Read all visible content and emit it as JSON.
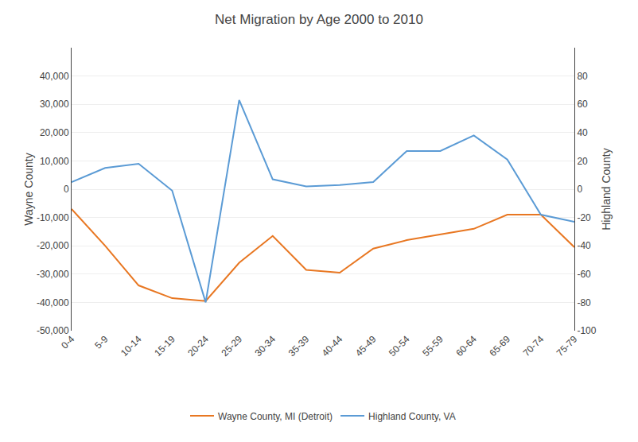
{
  "chart_data": {
    "type": "line",
    "title": "Net Migration by Age 2000 to 2010",
    "ylabel": "Wayne County",
    "y2label": "Highland County",
    "categories": [
      "0-4",
      "5-9",
      "10-14",
      "15-19",
      "20-24",
      "25-29",
      "30-34",
      "35-39",
      "40-44",
      "45-49",
      "50-54",
      "55-59",
      "60-64",
      "65-69",
      "70-74",
      "75-79"
    ],
    "series": [
      {
        "name": "Wayne County, MI (Detroit)",
        "color": "#E87722",
        "axis": "y",
        "values": [
          -7000,
          -20000,
          -34000,
          -38500,
          -39500,
          -26000,
          -16500,
          -28500,
          -29500,
          -21000,
          -18000,
          -16000,
          -14000,
          -9000,
          -9000,
          -20500
        ]
      },
      {
        "name": "Highland County, VA",
        "color": "#5B9BD5",
        "axis": "y2",
        "values": [
          5,
          15,
          18,
          -1,
          -80,
          63,
          7,
          2,
          3,
          5,
          27,
          27,
          38,
          21,
          -18,
          -23
        ]
      }
    ],
    "ylim": [
      -50000,
      50000
    ],
    "yticks": [
      {
        "value": -50000,
        "label": "-50,000"
      },
      {
        "value": -40000,
        "label": "-40,000"
      },
      {
        "value": -30000,
        "label": "-30,000"
      },
      {
        "value": -20000,
        "label": "-20,000"
      },
      {
        "value": -10000,
        "label": "-10,000"
      },
      0,
      {
        "value": 10000,
        "label": "10,000"
      },
      {
        "value": 20000,
        "label": "20,000"
      },
      {
        "value": 30000,
        "label": "30,000"
      },
      {
        "value": 40000,
        "label": "40,000"
      }
    ],
    "y2lim": [
      -100,
      100
    ],
    "y2ticks": [
      -100,
      -80,
      -60,
      -40,
      -20,
      0,
      20,
      40,
      60,
      80
    ],
    "grid": true,
    "legend": "bottom"
  }
}
